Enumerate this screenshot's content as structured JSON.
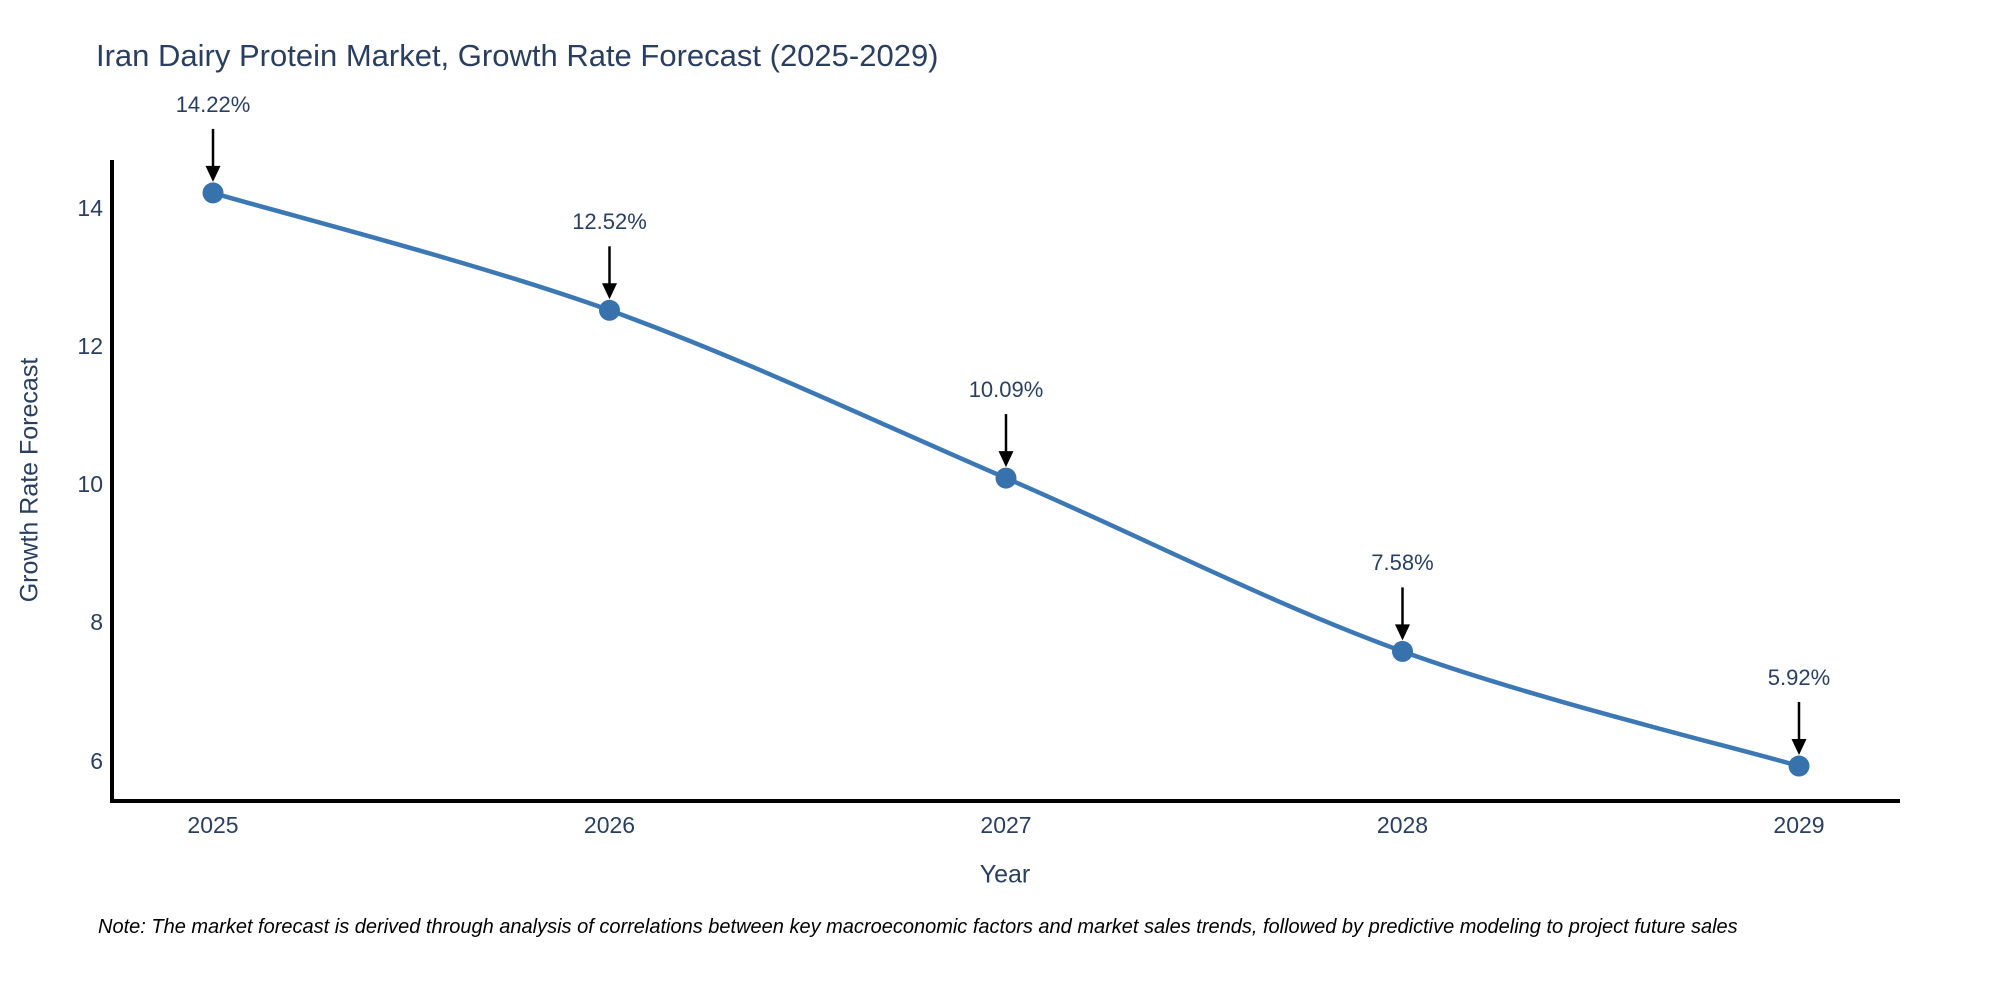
{
  "title": "Iran Dairy Protein Market, Growth Rate Forecast (2025-2029)",
  "note": "Note: The market forecast is derived through analysis of correlations between key macroeconomic factors and market sales trends, followed by predictive modeling to project future sales",
  "colors": {
    "line": "#3c78b4",
    "marker": "#3872ad",
    "axis_line": "#000000",
    "arrow": "#000000",
    "text": "#2a3f5f",
    "note_text": "#000000",
    "background": "#ffffff"
  },
  "chart_data": {
    "type": "line",
    "title": "Iran Dairy Protein Market, Growth Rate Forecast (2025-2029)",
    "xlabel": "Year",
    "ylabel": "Growth Rate Forecast",
    "x": [
      2025,
      2026,
      2027,
      2028,
      2029
    ],
    "xticks": [
      "2025",
      "2026",
      "2027",
      "2028",
      "2029"
    ],
    "yticks": [
      6,
      8,
      10,
      12,
      14
    ],
    "ylim": [
      5.4,
      14.7
    ],
    "xlim": [
      2024.74,
      2029.26
    ],
    "series": [
      {
        "name": "Growth Rate Forecast",
        "values": [
          14.22,
          12.52,
          10.09,
          7.58,
          5.92
        ]
      }
    ],
    "point_labels": [
      "14.22%",
      "12.52%",
      "10.09%",
      "7.58%",
      "5.92%"
    ],
    "annotation_style": "value label above point with downward black arrow",
    "line_shape": "spline",
    "markers": true,
    "grid": false,
    "legend": "none"
  }
}
